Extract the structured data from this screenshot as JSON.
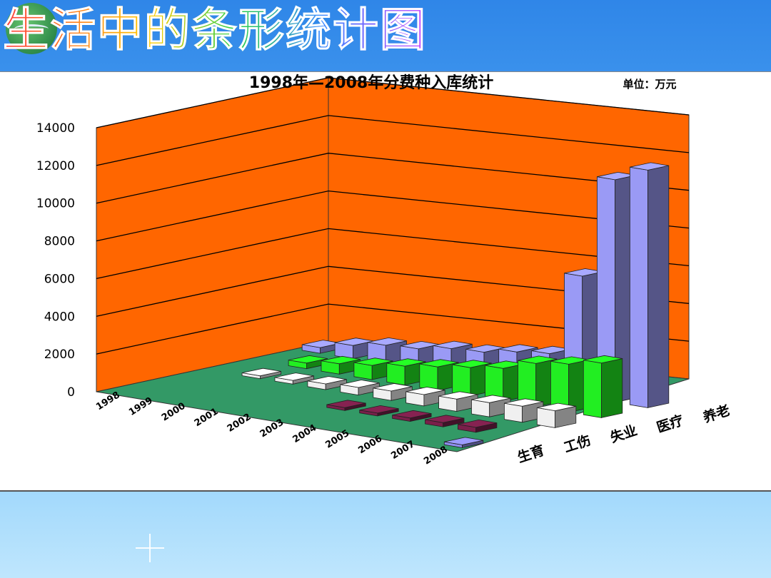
{
  "slide": {
    "title": "生活中的条形统计图"
  },
  "chart_data": {
    "type": "bar",
    "title": "1998年—2008年分费种入库统计",
    "unit_label": "单位：万元",
    "categories": [
      "1998",
      "1999",
      "2000",
      "2001",
      "2002",
      "2003",
      "2004",
      "2005",
      "2006",
      "2007",
      "2008"
    ],
    "series": [
      {
        "name": "养老",
        "color": "#9a9af5",
        "values": [
          300,
          700,
          1000,
          1100,
          1400,
          1500,
          1800,
          2000,
          6400,
          11800,
          12600
        ]
      },
      {
        "name": "医疗",
        "color": "#22ee22",
        "values": [
          null,
          300,
          550,
          750,
          1000,
          1250,
          1500,
          1750,
          2300,
          2550,
          2900
        ]
      },
      {
        "name": "失业",
        "color": "#f0f0f0",
        "values": [
          null,
          100,
          200,
          300,
          400,
          500,
          600,
          650,
          750,
          850,
          900
        ]
      },
      {
        "name": "工伤",
        "color": "#7a1f4a",
        "values": [
          null,
          null,
          null,
          null,
          null,
          100,
          150,
          180,
          220,
          260,
          null
        ]
      },
      {
        "name": "生育",
        "color": "#8e8ef0",
        "values": [
          null,
          null,
          null,
          null,
          null,
          null,
          null,
          null,
          null,
          null,
          150
        ]
      }
    ],
    "ylim": [
      0,
      14000
    ],
    "yticks": [
      0,
      2000,
      4000,
      6000,
      8000,
      10000,
      12000,
      14000
    ],
    "grid": true,
    "wall_color": "#ff6600",
    "floor_color": "#339966"
  }
}
